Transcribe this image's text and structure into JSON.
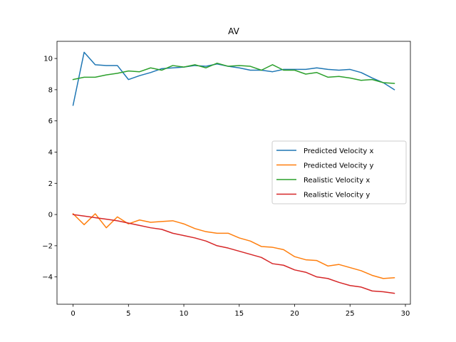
{
  "chart_data": {
    "type": "line",
    "title": "AV",
    "xlabel": "",
    "ylabel": "",
    "xlim": [
      -1.45,
      30.45
    ],
    "ylim": [
      -5.75,
      11.1
    ],
    "grid": false,
    "legend_position": "center-right",
    "xticks": [
      0,
      5,
      10,
      15,
      20,
      25,
      30
    ],
    "yticks": [
      -4,
      -2,
      0,
      2,
      4,
      6,
      8,
      10
    ],
    "x": [
      0,
      1,
      2,
      3,
      4,
      5,
      6,
      7,
      8,
      9,
      10,
      11,
      12,
      13,
      14,
      15,
      16,
      17,
      18,
      19,
      20,
      21,
      22,
      23,
      24,
      25,
      26,
      27,
      28,
      29
    ],
    "series": [
      {
        "name": "Predicted Velocity x",
        "color": "#1f77b4",
        "values": [
          7.0,
          10.4,
          9.6,
          9.55,
          9.55,
          8.65,
          8.9,
          9.1,
          9.35,
          9.4,
          9.45,
          9.55,
          9.5,
          9.65,
          9.5,
          9.4,
          9.25,
          9.25,
          9.15,
          9.3,
          9.3,
          9.3,
          9.4,
          9.3,
          9.25,
          9.3,
          9.1,
          8.75,
          8.45,
          8.0
        ]
      },
      {
        "name": "Predicted Velocity y",
        "color": "#ff7f0e",
        "values": [
          0.05,
          -0.65,
          0.05,
          -0.85,
          -0.15,
          -0.6,
          -0.35,
          -0.5,
          -0.45,
          -0.4,
          -0.6,
          -0.9,
          -1.1,
          -1.2,
          -1.2,
          -1.5,
          -1.7,
          -2.05,
          -2.1,
          -2.25,
          -2.7,
          -2.9,
          -2.95,
          -3.3,
          -3.2,
          -3.4,
          -3.6,
          -3.9,
          -4.1,
          -4.05
        ]
      },
      {
        "name": "Realistic Velocity x",
        "color": "#2ca02c",
        "values": [
          8.65,
          8.8,
          8.8,
          8.95,
          9.05,
          9.2,
          9.15,
          9.4,
          9.25,
          9.55,
          9.45,
          9.6,
          9.4,
          9.7,
          9.5,
          9.55,
          9.5,
          9.25,
          9.6,
          9.25,
          9.25,
          9.0,
          9.1,
          8.8,
          8.85,
          8.75,
          8.6,
          8.65,
          8.45,
          8.4
        ]
      },
      {
        "name": "Realistic Velocity y",
        "color": "#d62728",
        "values": [
          0.0,
          -0.1,
          -0.2,
          -0.3,
          -0.4,
          -0.55,
          -0.7,
          -0.85,
          -0.95,
          -1.2,
          -1.35,
          -1.5,
          -1.7,
          -2.0,
          -2.15,
          -2.35,
          -2.55,
          -2.75,
          -3.15,
          -3.25,
          -3.55,
          -3.7,
          -4.0,
          -4.1,
          -4.35,
          -4.55,
          -4.65,
          -4.9,
          -4.95,
          -5.05
        ]
      }
    ]
  }
}
